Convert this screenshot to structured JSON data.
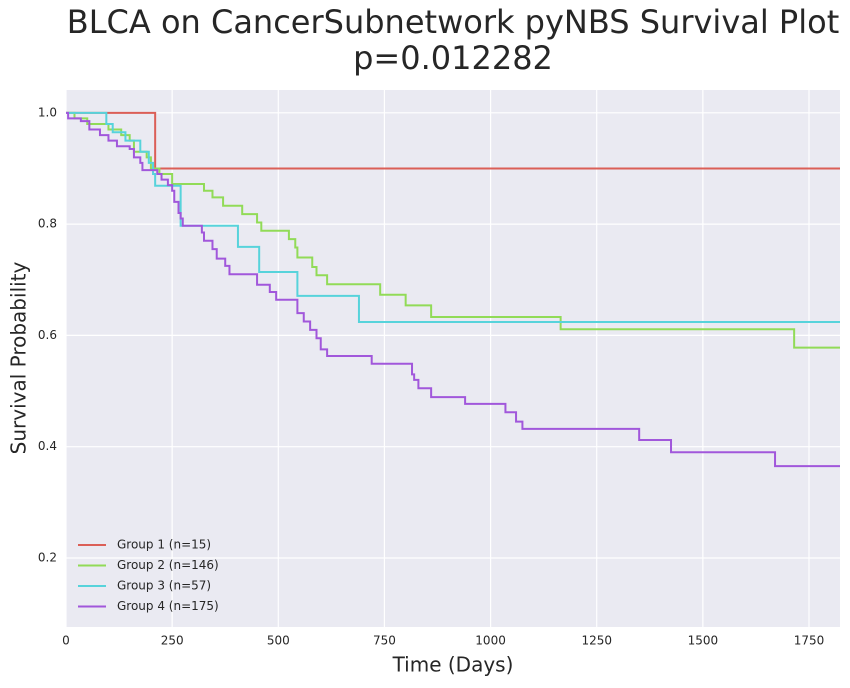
{
  "chart_data": {
    "type": "step",
    "title": "BLCA on CancerSubnetwork pyNBS Survival Plot",
    "subtitle": "p=0.012282",
    "xlabel": "Time (Days)",
    "ylabel": "Survival Probability",
    "xlim": [
      0,
      1823
    ],
    "ylim": [
      0.076,
      1.041
    ],
    "xticks": [
      0,
      250,
      500,
      750,
      1000,
      1250,
      1500,
      1750
    ],
    "yticks": [
      0.2,
      0.4,
      0.6,
      0.8,
      {
        "value": 1,
        "label": "1.0"
      }
    ],
    "grid": true,
    "legend": "lower left",
    "series": [
      {
        "name": "Group 1 (n=15)",
        "color": "#db5f57",
        "x": [
          0,
          210
        ],
        "values": [
          1.0,
          0.9
        ]
      },
      {
        "name": "Group 2 (n=146)",
        "color": "#91db57",
        "x": [
          0,
          20,
          50,
          100,
          130,
          150,
          160,
          190,
          200,
          220,
          250,
          325,
          345,
          370,
          415,
          450,
          460,
          525,
          540,
          545,
          580,
          590,
          615,
          740,
          800,
          860,
          1165,
          1715
        ],
        "values": [
          1.0,
          0.99,
          0.98,
          0.97,
          0.96,
          0.95,
          0.93,
          0.92,
          0.9,
          0.89,
          0.872,
          0.86,
          0.848,
          0.833,
          0.818,
          0.803,
          0.788,
          0.773,
          0.758,
          0.74,
          0.723,
          0.708,
          0.692,
          0.673,
          0.654,
          0.633,
          0.611,
          0.578
        ]
      },
      {
        "name": "Group 3 (n=57)",
        "color": "#57d3db",
        "x": [
          0,
          95,
          110,
          140,
          175,
          195,
          205,
          210,
          270,
          405,
          455,
          545,
          690
        ],
        "values": [
          1.0,
          0.98,
          0.965,
          0.95,
          0.93,
          0.91,
          0.89,
          0.869,
          0.797,
          0.759,
          0.714,
          0.671,
          0.624
        ]
      },
      {
        "name": "Group 4 (n=175)",
        "color": "#a157db",
        "x": [
          0,
          5,
          35,
          55,
          80,
          100,
          120,
          150,
          160,
          175,
          180,
          215,
          225,
          240,
          250,
          255,
          265,
          270,
          275,
          320,
          325,
          345,
          355,
          375,
          385,
          450,
          480,
          495,
          545,
          560,
          575,
          590,
          600,
          615,
          720,
          815,
          820,
          830,
          860,
          940,
          1035,
          1060,
          1075,
          1350,
          1425,
          1670
        ],
        "values": [
          1.0,
          0.99,
          0.985,
          0.97,
          0.96,
          0.95,
          0.94,
          0.935,
          0.92,
          0.91,
          0.897,
          0.89,
          0.88,
          0.87,
          0.86,
          0.84,
          0.82,
          0.81,
          0.797,
          0.785,
          0.77,
          0.755,
          0.738,
          0.725,
          0.71,
          0.691,
          0.678,
          0.664,
          0.64,
          0.625,
          0.61,
          0.595,
          0.575,
          0.563,
          0.549,
          0.53,
          0.52,
          0.505,
          0.489,
          0.477,
          0.462,
          0.445,
          0.432,
          0.412,
          0.39,
          0.365
        ]
      }
    ]
  }
}
